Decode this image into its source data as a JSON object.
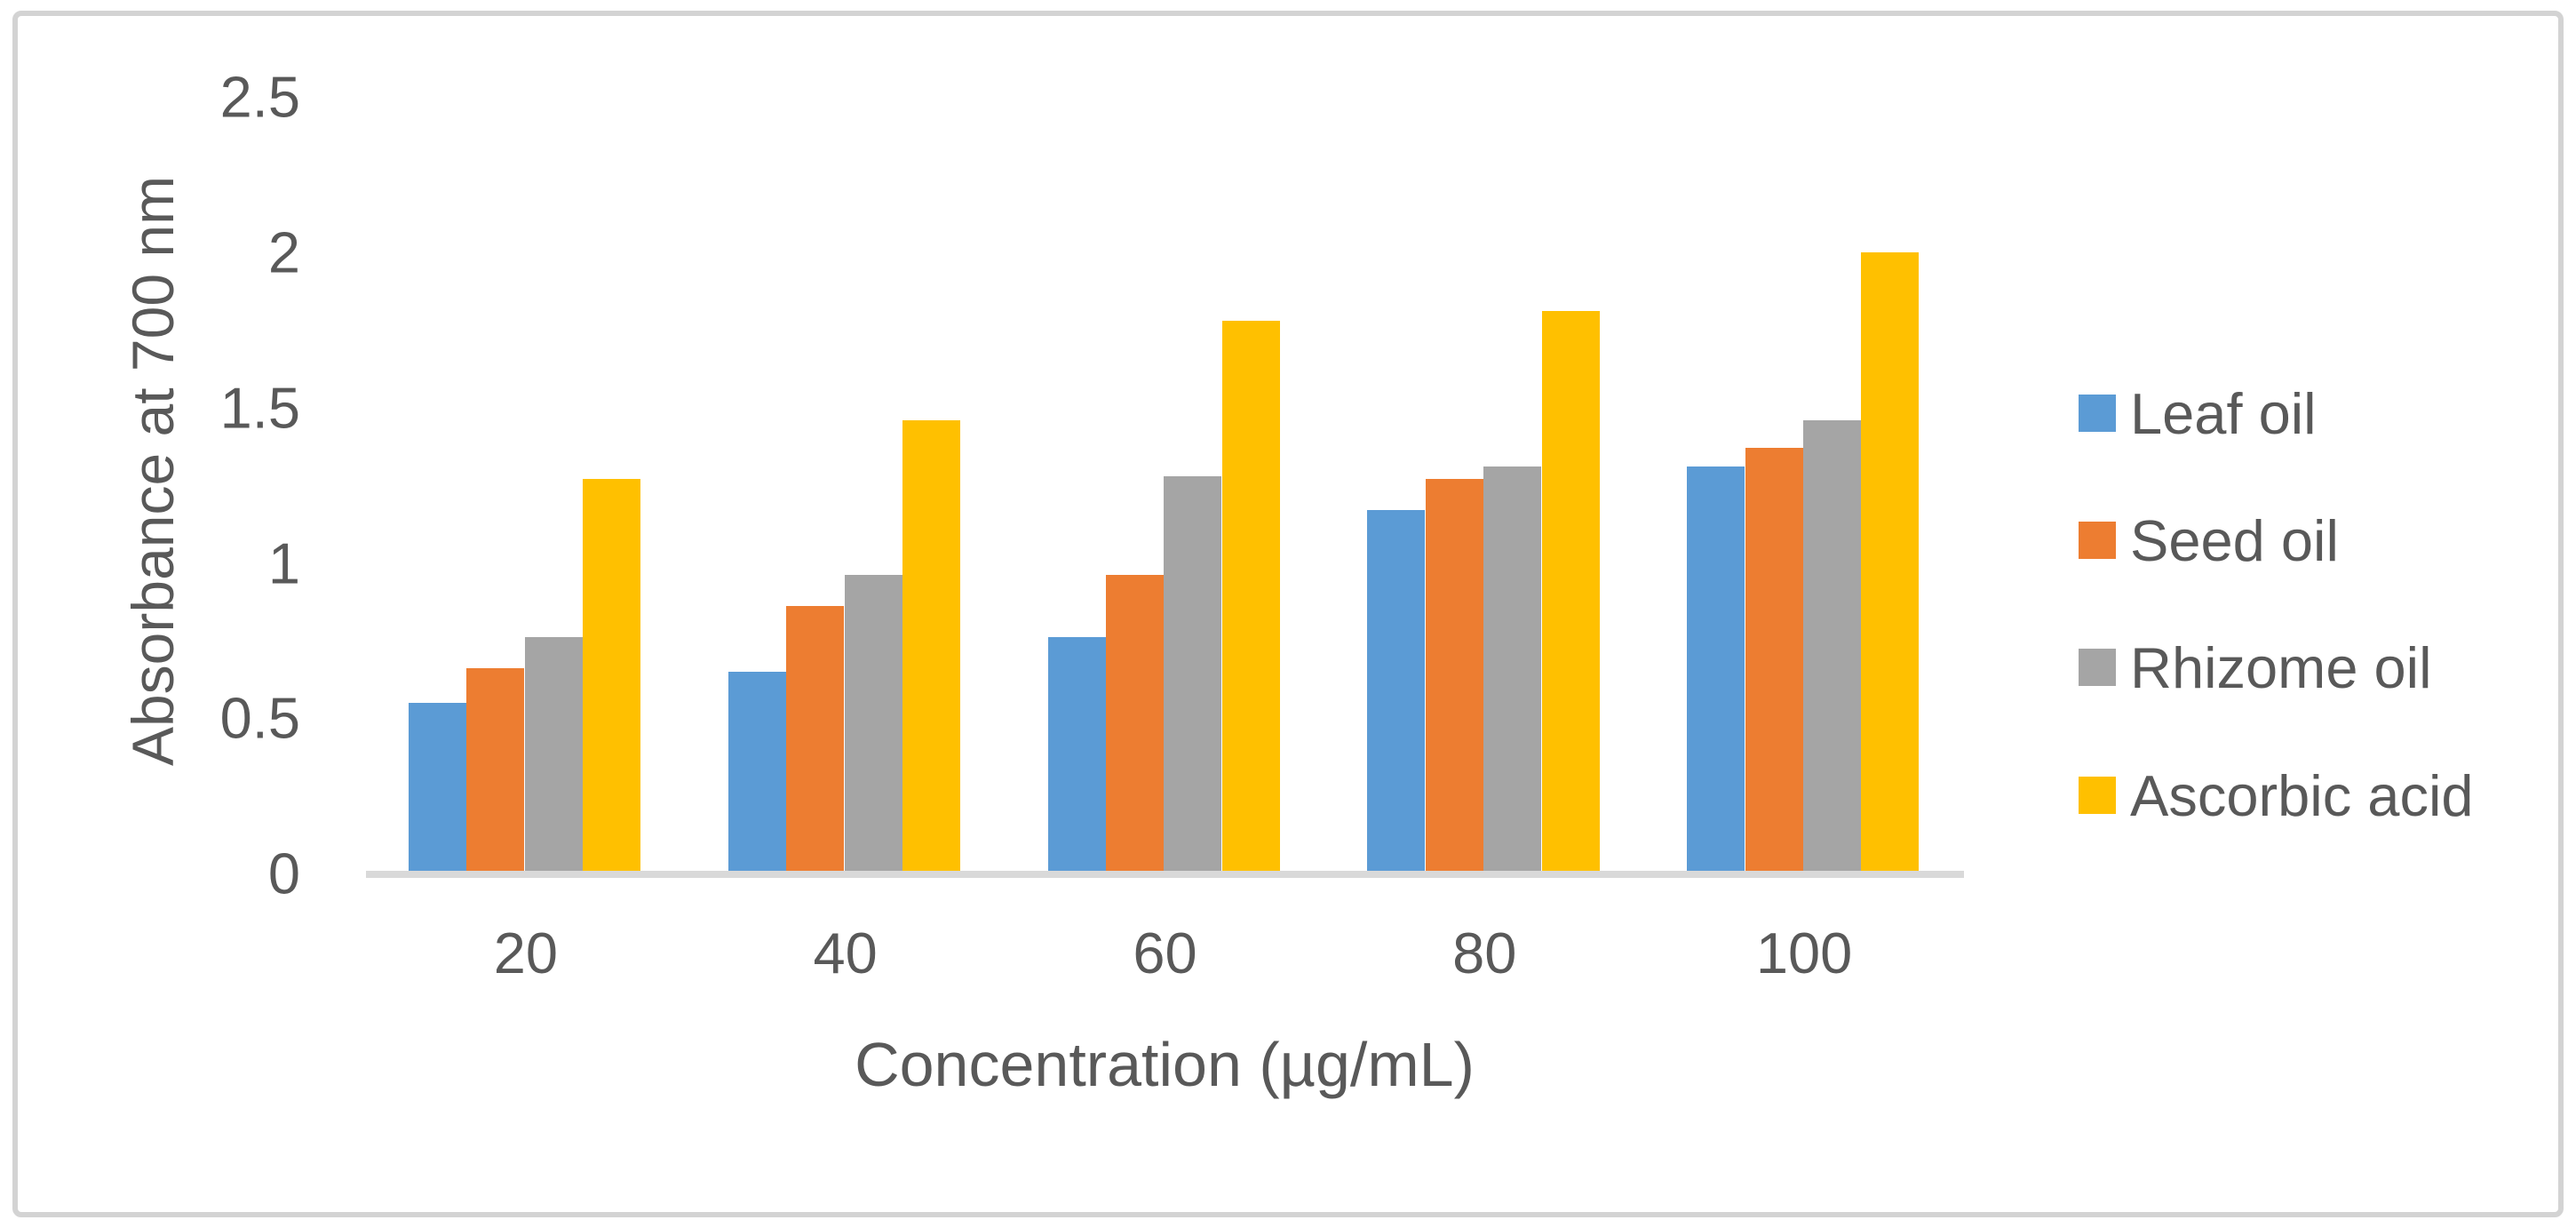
{
  "chart_data": {
    "type": "bar",
    "title": "",
    "xlabel": "Concentration (µg/mL)",
    "ylabel": "Absorbance at 700 nm",
    "categories": [
      "20",
      "40",
      "60",
      "80",
      "100"
    ],
    "series": [
      {
        "name": "Leaf oil",
        "color": "#5B9BD5",
        "values": [
          0.55,
          0.65,
          0.76,
          1.17,
          1.31
        ]
      },
      {
        "name": "Seed oil",
        "color": "#ED7D31",
        "values": [
          0.66,
          0.86,
          0.96,
          1.27,
          1.37
        ]
      },
      {
        "name": "Rhizome oil",
        "color": "#A5A5A5",
        "values": [
          0.76,
          0.96,
          1.28,
          1.31,
          1.46
        ]
      },
      {
        "name": "Ascorbic acid",
        "color": "#FFC000",
        "values": [
          1.27,
          1.46,
          1.78,
          1.81,
          2.0
        ]
      }
    ],
    "ylim": [
      0,
      2.5
    ],
    "ytick_step": 0.5,
    "yticks": [
      "0",
      "0.5",
      "1",
      "1.5",
      "2",
      "2.5"
    ],
    "grid": false,
    "legend_position": "right"
  },
  "colors": {
    "axis_line": "#D9D9D9",
    "text": "#595959",
    "border": "#D3D3D3",
    "background": "#FFFFFF"
  }
}
